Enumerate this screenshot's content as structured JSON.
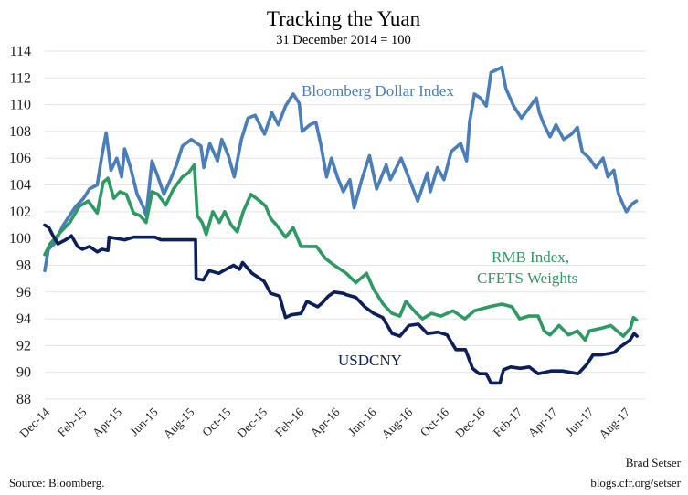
{
  "chart_data": {
    "type": "line",
    "title": "Tracking the Yuan",
    "subtitle": "31 December 2014 = 100",
    "xlabel": "",
    "ylabel": "",
    "ylim": [
      88,
      114
    ],
    "xlim": [
      "2014-12-01",
      "2017-09-05"
    ],
    "grid": true,
    "yticks": [
      "88",
      "90",
      "92",
      "94",
      "96",
      "98",
      "100",
      "102",
      "104",
      "106",
      "108",
      "110",
      "112",
      "114"
    ],
    "xticks": [
      {
        "date": "2014-12-01",
        "label": "Dec-14"
      },
      {
        "date": "2015-02-01",
        "label": "Feb-15"
      },
      {
        "date": "2015-04-01",
        "label": "Apr-15"
      },
      {
        "date": "2015-06-01",
        "label": "Jun-15"
      },
      {
        "date": "2015-08-01",
        "label": "Aug-15"
      },
      {
        "date": "2015-10-01",
        "label": "Oct-15"
      },
      {
        "date": "2015-12-01",
        "label": "Dec-15"
      },
      {
        "date": "2016-02-01",
        "label": "Feb-16"
      },
      {
        "date": "2016-04-01",
        "label": "Apr-16"
      },
      {
        "date": "2016-06-01",
        "label": "Jun-16"
      },
      {
        "date": "2016-08-01",
        "label": "Aug-16"
      },
      {
        "date": "2016-10-01",
        "label": "Oct-16"
      },
      {
        "date": "2016-12-01",
        "label": "Dec-16"
      },
      {
        "date": "2017-02-01",
        "label": "Feb-17"
      },
      {
        "date": "2017-04-01",
        "label": "Apr-17"
      },
      {
        "date": "2017-06-01",
        "label": "Jun-17"
      },
      {
        "date": "2017-08-01",
        "label": "Aug-17"
      }
    ],
    "series": [
      {
        "name": "Bloomberg Dollar Index",
        "color": "#4a7ebb",
        "points": [
          [
            "2014-12-01",
            97.6
          ],
          [
            "2014-12-07",
            99.2
          ],
          [
            "2014-12-17",
            99.6
          ],
          [
            "2015-01-01",
            101
          ],
          [
            "2015-01-22",
            102.4
          ],
          [
            "2015-02-04",
            103
          ],
          [
            "2015-02-14",
            103.7
          ],
          [
            "2015-02-27",
            104
          ],
          [
            "2015-03-06",
            106
          ],
          [
            "2015-03-14",
            107.9
          ],
          [
            "2015-03-22",
            105.1
          ],
          [
            "2015-04-01",
            106
          ],
          [
            "2015-04-09",
            104.6
          ],
          [
            "2015-04-14",
            106.7
          ],
          [
            "2015-04-24",
            105.3
          ],
          [
            "2015-05-05",
            103.3
          ],
          [
            "2015-05-15",
            102.4
          ],
          [
            "2015-05-20",
            101.7
          ],
          [
            "2015-05-30",
            105.8
          ],
          [
            "2015-06-09",
            104.6
          ],
          [
            "2015-06-19",
            103.3
          ],
          [
            "2015-06-30",
            104.4
          ],
          [
            "2015-07-10",
            105.5
          ],
          [
            "2015-07-20",
            106.9
          ],
          [
            "2015-08-04",
            107.4
          ],
          [
            "2015-08-20",
            106.9
          ],
          [
            "2015-08-25",
            105.3
          ],
          [
            "2015-09-04",
            107.1
          ],
          [
            "2015-09-17",
            105.8
          ],
          [
            "2015-09-24",
            107.4
          ],
          [
            "2015-10-05",
            106.2
          ],
          [
            "2015-10-15",
            104.6
          ],
          [
            "2015-10-27",
            107.4
          ],
          [
            "2015-11-07",
            109
          ],
          [
            "2015-11-19",
            109.2
          ],
          [
            "2015-12-05",
            107.8
          ],
          [
            "2015-12-17",
            109.4
          ],
          [
            "2015-12-28",
            108.5
          ],
          [
            "2016-01-09",
            109.9
          ],
          [
            "2016-01-22",
            110.8
          ],
          [
            "2016-02-01",
            110.1
          ],
          [
            "2016-02-06",
            108
          ],
          [
            "2016-02-19",
            108.5
          ],
          [
            "2016-02-29",
            108.7
          ],
          [
            "2016-03-08",
            107.1
          ],
          [
            "2016-03-18",
            104.6
          ],
          [
            "2016-03-26",
            106
          ],
          [
            "2016-04-05",
            104.6
          ],
          [
            "2016-04-15",
            103.5
          ],
          [
            "2016-04-26",
            104.4
          ],
          [
            "2016-05-03",
            102.3
          ],
          [
            "2016-05-16",
            104.4
          ],
          [
            "2016-05-29",
            106.2
          ],
          [
            "2016-06-10",
            103.7
          ],
          [
            "2016-06-26",
            105.5
          ],
          [
            "2016-07-03",
            104.4
          ],
          [
            "2016-07-21",
            106
          ],
          [
            "2016-08-06",
            104.2
          ],
          [
            "2016-08-18",
            102.8
          ],
          [
            "2016-09-03",
            104.9
          ],
          [
            "2016-09-08",
            103.5
          ],
          [
            "2016-09-20",
            105.3
          ],
          [
            "2016-10-01",
            104.4
          ],
          [
            "2016-10-13",
            106.5
          ],
          [
            "2016-10-29",
            107.1
          ],
          [
            "2016-11-08",
            105.8
          ],
          [
            "2016-11-13",
            108.7
          ],
          [
            "2016-11-21",
            110.8
          ],
          [
            "2016-12-01",
            110.5
          ],
          [
            "2016-12-11",
            109.9
          ],
          [
            "2016-12-19",
            112.4
          ],
          [
            "2017-01-06",
            112.8
          ],
          [
            "2017-01-13",
            111.2
          ],
          [
            "2017-01-26",
            109.9
          ],
          [
            "2017-02-08",
            109
          ],
          [
            "2017-02-20",
            109.7
          ],
          [
            "2017-03-05",
            110.5
          ],
          [
            "2017-03-10",
            109.4
          ],
          [
            "2017-03-18",
            108.5
          ],
          [
            "2017-03-28",
            107.6
          ],
          [
            "2017-04-07",
            108.5
          ],
          [
            "2017-04-20",
            107.4
          ],
          [
            "2017-05-03",
            107.8
          ],
          [
            "2017-05-13",
            108.3
          ],
          [
            "2017-05-21",
            106.5
          ],
          [
            "2017-06-02",
            106
          ],
          [
            "2017-06-13",
            105.3
          ],
          [
            "2017-06-25",
            106
          ],
          [
            "2017-07-03",
            104.6
          ],
          [
            "2017-07-13",
            105.1
          ],
          [
            "2017-07-21",
            103.3
          ],
          [
            "2017-08-03",
            102
          ],
          [
            "2017-08-13",
            102.6
          ],
          [
            "2017-08-20",
            102.8
          ]
        ]
      },
      {
        "name": "RMB Index, CFETS Weights",
        "label_lines": [
          "RMB Index,",
          "CFETS Weights"
        ],
        "color": "#2e9a63",
        "points": [
          [
            "2014-12-01",
            98.8
          ],
          [
            "2014-12-10",
            99.6
          ],
          [
            "2014-12-28",
            100.5
          ],
          [
            "2015-01-12",
            101.2
          ],
          [
            "2015-01-28",
            102.4
          ],
          [
            "2015-02-12",
            102.8
          ],
          [
            "2015-02-27",
            101.9
          ],
          [
            "2015-03-09",
            104.2
          ],
          [
            "2015-03-17",
            104.5
          ],
          [
            "2015-03-27",
            103
          ],
          [
            "2015-04-06",
            103.5
          ],
          [
            "2015-04-17",
            103.3
          ],
          [
            "2015-04-29",
            101.9
          ],
          [
            "2015-05-10",
            101.7
          ],
          [
            "2015-05-20",
            101.2
          ],
          [
            "2015-05-30",
            103.5
          ],
          [
            "2015-06-09",
            103.3
          ],
          [
            "2015-06-22",
            102.5
          ],
          [
            "2015-07-05",
            103.7
          ],
          [
            "2015-07-20",
            104.6
          ],
          [
            "2015-07-30",
            104.9
          ],
          [
            "2015-08-09",
            105.5
          ],
          [
            "2015-08-14",
            101.7
          ],
          [
            "2015-08-22",
            101.2
          ],
          [
            "2015-08-29",
            100.3
          ],
          [
            "2015-09-09",
            102
          ],
          [
            "2015-09-20",
            101.2
          ],
          [
            "2015-09-29",
            102
          ],
          [
            "2015-10-10",
            101
          ],
          [
            "2015-10-20",
            100.5
          ],
          [
            "2015-10-30",
            102
          ],
          [
            "2015-11-12",
            103.3
          ],
          [
            "2015-11-27",
            102.8
          ],
          [
            "2015-12-07",
            102.4
          ],
          [
            "2015-12-15",
            101.5
          ],
          [
            "2015-12-25",
            101
          ],
          [
            "2016-01-09",
            100.1
          ],
          [
            "2016-01-22",
            100.8
          ],
          [
            "2016-02-04",
            99.4
          ],
          [
            "2016-03-01",
            99.4
          ],
          [
            "2016-03-16",
            98.5
          ],
          [
            "2016-03-31",
            98
          ],
          [
            "2016-04-20",
            97.4
          ],
          [
            "2016-05-06",
            96.7
          ],
          [
            "2016-05-24",
            97.4
          ],
          [
            "2016-06-05",
            96.2
          ],
          [
            "2016-06-21",
            95.1
          ],
          [
            "2016-07-06",
            94.4
          ],
          [
            "2016-07-19",
            94.2
          ],
          [
            "2016-07-29",
            95.3
          ],
          [
            "2016-08-16",
            94.4
          ],
          [
            "2016-08-26",
            94
          ],
          [
            "2016-09-10",
            94.4
          ],
          [
            "2016-09-26",
            94.2
          ],
          [
            "2016-10-16",
            94.6
          ],
          [
            "2016-11-05",
            94
          ],
          [
            "2016-11-21",
            94.6
          ],
          [
            "2016-12-16",
            94.9
          ],
          [
            "2017-01-06",
            95.1
          ],
          [
            "2017-01-23",
            94.9
          ],
          [
            "2017-02-05",
            94
          ],
          [
            "2017-02-20",
            94.2
          ],
          [
            "2017-03-08",
            94.2
          ],
          [
            "2017-03-18",
            93.1
          ],
          [
            "2017-03-28",
            92.8
          ],
          [
            "2017-04-12",
            93.5
          ],
          [
            "2017-04-28",
            92.8
          ],
          [
            "2017-05-13",
            93.1
          ],
          [
            "2017-05-26",
            92.4
          ],
          [
            "2017-06-02",
            93.1
          ],
          [
            "2017-06-23",
            93.3
          ],
          [
            "2017-07-08",
            93.5
          ],
          [
            "2017-07-29",
            92.7
          ],
          [
            "2017-08-10",
            93.3
          ],
          [
            "2017-08-15",
            94.1
          ],
          [
            "2017-08-20",
            93.9
          ]
        ]
      },
      {
        "name": "USDCNY",
        "color": "#0b1f5c",
        "points": [
          [
            "2014-12-01",
            101
          ],
          [
            "2014-12-08",
            100.8
          ],
          [
            "2014-12-15",
            100.2
          ],
          [
            "2014-12-23",
            99.6
          ],
          [
            "2015-01-05",
            99.9
          ],
          [
            "2015-01-15",
            100.2
          ],
          [
            "2015-01-25",
            99.4
          ],
          [
            "2015-02-02",
            99.2
          ],
          [
            "2015-02-14",
            99.4
          ],
          [
            "2015-02-27",
            99
          ],
          [
            "2015-03-07",
            99.2
          ],
          [
            "2015-03-17",
            99.1
          ],
          [
            "2015-03-19",
            100.1
          ],
          [
            "2015-04-14",
            99.9
          ],
          [
            "2015-04-29",
            100.1
          ],
          [
            "2015-06-04",
            100.1
          ],
          [
            "2015-06-14",
            99.9
          ],
          [
            "2015-08-11",
            99.9
          ],
          [
            "2015-08-12",
            97
          ],
          [
            "2015-08-24",
            96.9
          ],
          [
            "2015-09-03",
            97.6
          ],
          [
            "2015-09-19",
            97.4
          ],
          [
            "2015-10-01",
            97.7
          ],
          [
            "2015-10-14",
            98
          ],
          [
            "2015-10-24",
            97.7
          ],
          [
            "2015-10-29",
            98.2
          ],
          [
            "2015-11-14",
            97.4
          ],
          [
            "2015-12-04",
            96.8
          ],
          [
            "2015-12-15",
            95.9
          ],
          [
            "2015-12-30",
            95.7
          ],
          [
            "2016-01-09",
            94.1
          ],
          [
            "2016-01-19",
            94.3
          ],
          [
            "2016-02-04",
            94.4
          ],
          [
            "2016-02-14",
            95.3
          ],
          [
            "2016-03-03",
            94.9
          ],
          [
            "2016-03-11",
            95.2
          ],
          [
            "2016-03-21",
            95.7
          ],
          [
            "2016-03-31",
            96
          ],
          [
            "2016-04-15",
            95.9
          ],
          [
            "2016-04-20",
            95.8
          ],
          [
            "2016-05-06",
            95.6
          ],
          [
            "2016-05-21",
            94.9
          ],
          [
            "2016-06-05",
            94.4
          ],
          [
            "2016-06-20",
            94.1
          ],
          [
            "2016-07-06",
            92.9
          ],
          [
            "2016-07-19",
            92.7
          ],
          [
            "2016-08-03",
            93.5
          ],
          [
            "2016-08-19",
            93.6
          ],
          [
            "2016-09-03",
            92.9
          ],
          [
            "2016-09-21",
            93
          ],
          [
            "2016-10-06",
            92.8
          ],
          [
            "2016-10-21",
            91.7
          ],
          [
            "2016-11-06",
            91.7
          ],
          [
            "2016-11-18",
            90.3
          ],
          [
            "2016-11-29",
            89.9
          ],
          [
            "2016-12-11",
            89.9
          ],
          [
            "2016-12-19",
            89.2
          ],
          [
            "2017-01-03",
            89.2
          ],
          [
            "2017-01-09",
            90.2
          ],
          [
            "2017-01-21",
            90.4
          ],
          [
            "2017-02-06",
            90.3
          ],
          [
            "2017-02-21",
            90.4
          ],
          [
            "2017-03-08",
            89.9
          ],
          [
            "2017-03-29",
            90.1
          ],
          [
            "2017-04-18",
            90.1
          ],
          [
            "2017-05-14",
            89.9
          ],
          [
            "2017-05-29",
            90.6
          ],
          [
            "2017-06-08",
            91.3
          ],
          [
            "2017-06-21",
            91.3
          ],
          [
            "2017-07-04",
            91.4
          ],
          [
            "2017-07-14",
            91.5
          ],
          [
            "2017-07-24",
            91.9
          ],
          [
            "2017-08-09",
            92.4
          ],
          [
            "2017-08-16",
            92.9
          ],
          [
            "2017-08-21",
            92.7
          ]
        ]
      }
    ]
  },
  "footer": {
    "source": "Source: Bloomberg.",
    "author": "Brad Setser",
    "site": "blogs.cfr.org/setser"
  }
}
